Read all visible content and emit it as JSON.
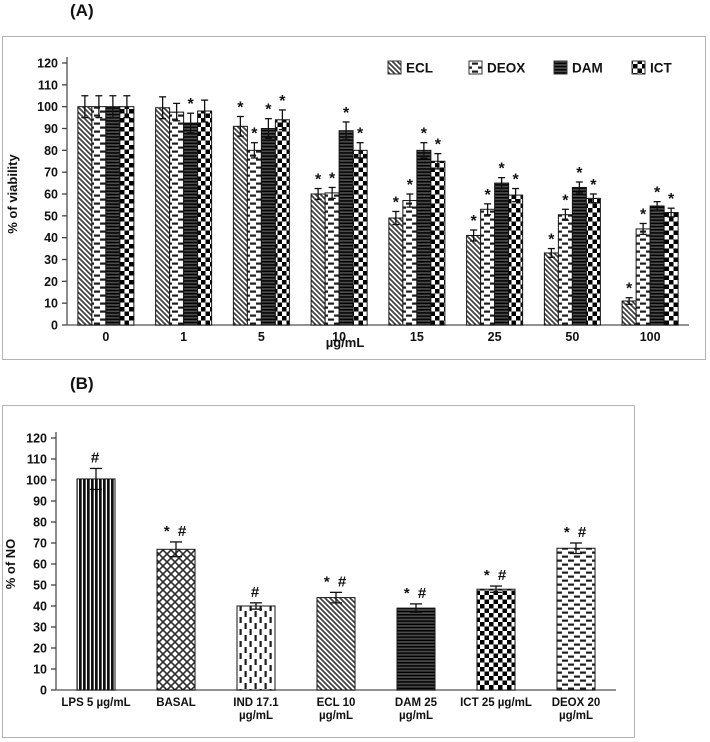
{
  "figure": {
    "panel_a_label": "(A)",
    "panel_b_label": "(B)"
  },
  "colors": {
    "ink": "#111111",
    "axis": "#6f6f6f",
    "panel_border": "#b3b3b3",
    "bar_dark": "#4c4c4c",
    "pattern_ink": "#1d1d1d"
  },
  "chart_data": [
    {
      "id": "viability",
      "type": "bar",
      "title": "",
      "xlabel": "µg/mL",
      "ylabel": "% of viability",
      "ylim": [
        0,
        120
      ],
      "ytick_step": 10,
      "grid": false,
      "legend_position": "top-right-inside",
      "categories": [
        "0",
        "1",
        "5",
        "10",
        "15",
        "25",
        "50",
        "100"
      ],
      "series": [
        {
          "name": "ECL",
          "pattern": "diagonal",
          "values": [
            100,
            99.5,
            91,
            60,
            49,
            41,
            33,
            11
          ],
          "errors": [
            5,
            5,
            4.5,
            2.5,
            3,
            2.5,
            2,
            1.5
          ],
          "annotations": [
            "",
            "",
            "*",
            "*",
            "*",
            "*",
            "*",
            "*"
          ]
        },
        {
          "name": "DEOX",
          "pattern": "dash-horizontal",
          "values": [
            100,
            97.5,
            80,
            60.5,
            57,
            53,
            50.5,
            44
          ],
          "errors": [
            5,
            4,
            3.5,
            2.5,
            3,
            2.5,
            2.5,
            2.5
          ],
          "annotations": [
            "",
            "",
            "*",
            "*",
            "*",
            "*",
            "*",
            "*"
          ]
        },
        {
          "name": "DAM",
          "pattern": "dark-horizontal-lines",
          "values": [
            100,
            92.5,
            90,
            89,
            80,
            65,
            63,
            54.5
          ],
          "errors": [
            5,
            4.5,
            4.5,
            4,
            3.5,
            2.5,
            2.5,
            2
          ],
          "annotations": [
            "",
            "*",
            "*",
            "*",
            "*",
            "*",
            "*",
            "*"
          ]
        },
        {
          "name": "ICT",
          "pattern": "checkerboard",
          "values": [
            100,
            98,
            94,
            80,
            75,
            59.5,
            58,
            51.5
          ],
          "errors": [
            5,
            5,
            4.5,
            3.5,
            3.5,
            3,
            2,
            2
          ],
          "annotations": [
            "",
            "",
            "*",
            "*",
            "*",
            "*",
            "*",
            "*"
          ]
        }
      ]
    },
    {
      "id": "nitric-oxide",
      "type": "bar",
      "title": "",
      "xlabel": "",
      "ylabel": "% of NO",
      "ylim": [
        0,
        120
      ],
      "ytick_step": 10,
      "grid": false,
      "categories": [
        [
          "LPS 5 µg/mL"
        ],
        [
          "BASAL"
        ],
        [
          "IND 17.1",
          "µg/mL"
        ],
        [
          "ECL 10",
          "µg/mL"
        ],
        [
          "DAM 25",
          "µg/mL"
        ],
        [
          "ICT 25 µg/mL"
        ],
        [
          "DEOX 20",
          "µg/mL"
        ]
      ],
      "values": [
        100.5,
        67,
        40,
        44,
        39,
        48,
        67.5
      ],
      "errors": [
        5,
        3.5,
        1.5,
        2.5,
        2,
        1.5,
        2.5
      ],
      "annotations": [
        "#",
        "* #",
        "#",
        "* #",
        "* #",
        "* #",
        "* #"
      ],
      "patterns": [
        "vertical-stripes-dark",
        "crosshatch",
        "dash-vertical",
        "diagonal",
        "dark-horizontal-lines",
        "checkerboard",
        "dash-horizontal"
      ]
    }
  ]
}
